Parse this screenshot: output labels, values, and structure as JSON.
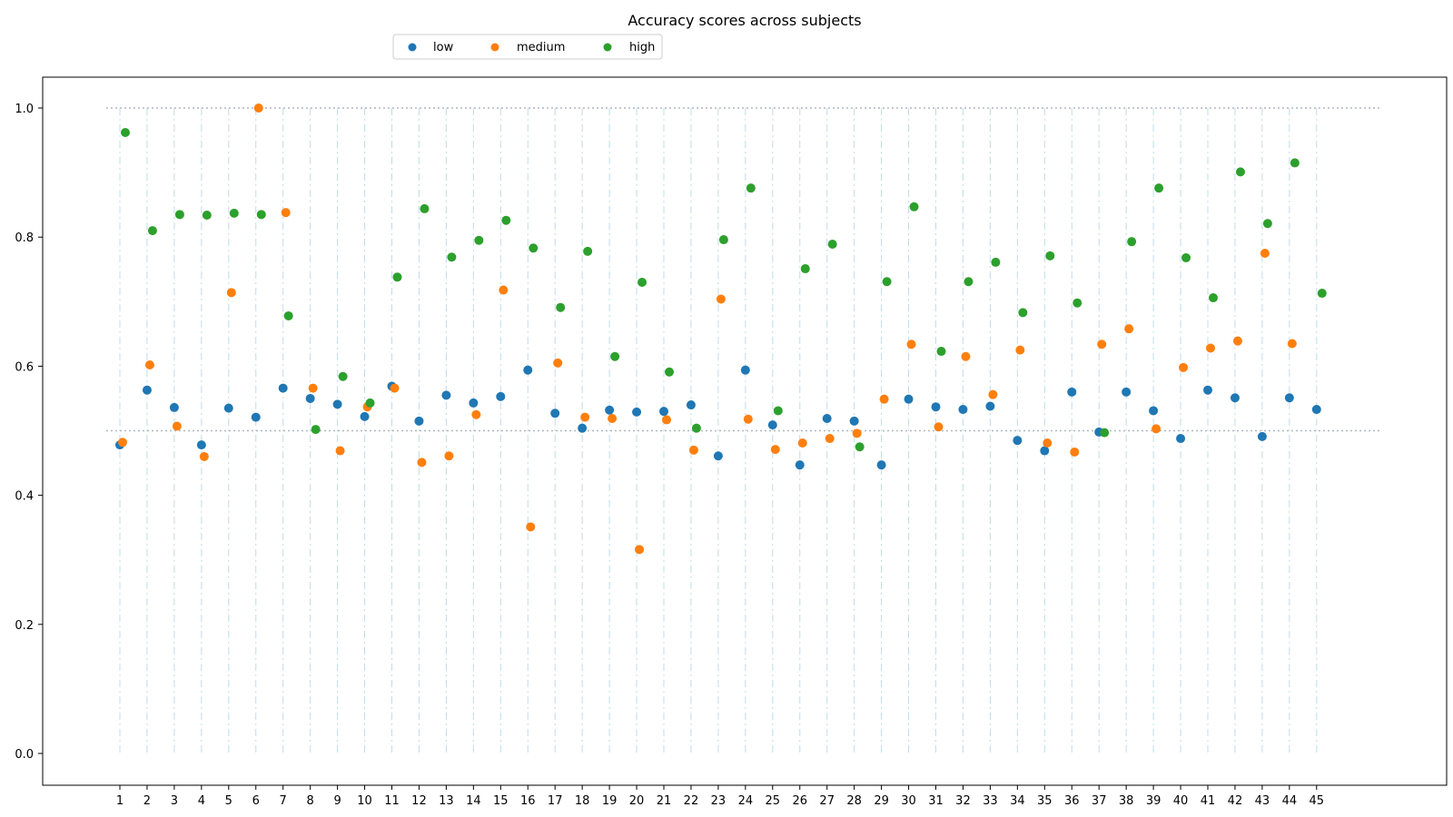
{
  "chart_data": {
    "type": "scatter",
    "title": "Accuracy scores across subjects",
    "xlabel": "",
    "ylabel": "",
    "ylim": [
      -0.05,
      1.05
    ],
    "y_ticks": [
      0.0,
      0.2,
      0.4,
      0.6,
      0.8,
      1.0
    ],
    "y_tick_labels": [
      "0.0",
      "0.2",
      "0.4",
      "0.6",
      "0.8",
      "1.0"
    ],
    "reference_lines": [
      0.5,
      1.0
    ],
    "grid": "vertical dash-dot per subject",
    "legend_position": "top-left",
    "categories": [
      "1",
      "2",
      "3",
      "4",
      "5",
      "6",
      "7",
      "8",
      "9",
      "10",
      "11",
      "12",
      "13",
      "14",
      "15",
      "16",
      "17",
      "18",
      "19",
      "20",
      "21",
      "22",
      "23",
      "24",
      "25",
      "26",
      "27",
      "28",
      "29",
      "30",
      "31",
      "32",
      "33",
      "34",
      "35",
      "36",
      "37",
      "38",
      "39",
      "40",
      "41",
      "42",
      "43",
      "44",
      "45"
    ],
    "series": [
      {
        "name": "low",
        "color": "#1f77b4",
        "values": [
          0.478,
          0.563,
          0.536,
          0.478,
          0.535,
          0.521,
          0.566,
          0.55,
          0.541,
          0.522,
          0.569,
          0.515,
          0.555,
          0.543,
          0.553,
          0.594,
          0.527,
          0.504,
          0.532,
          0.529,
          0.53,
          0.54,
          0.461,
          0.594,
          0.509,
          0.447,
          0.519,
          0.515,
          0.447,
          0.549,
          0.537,
          0.533,
          0.538,
          0.485,
          0.469,
          0.56,
          0.498,
          0.56,
          0.531,
          0.488,
          0.563,
          0.551,
          0.491,
          0.551,
          0.533
        ]
      },
      {
        "name": "medium",
        "color": "#ff7f0e",
        "values": [
          0.482,
          0.602,
          0.507,
          0.46,
          0.714,
          1.0,
          0.838,
          0.566,
          0.469,
          0.537,
          0.566,
          0.451,
          0.461,
          0.525,
          0.718,
          0.351,
          0.605,
          0.521,
          0.519,
          0.316,
          0.517,
          0.47,
          0.704,
          0.518,
          0.471,
          0.481,
          0.488,
          0.496,
          0.549,
          0.634,
          0.506,
          0.615,
          0.556,
          0.625,
          0.481,
          0.467,
          0.634,
          0.658,
          0.503,
          0.598,
          0.628,
          0.639,
          0.775,
          0.635,
          null
        ]
      },
      {
        "name": "high",
        "color": "#2ca02c",
        "values": [
          0.962,
          0.81,
          0.835,
          0.834,
          0.837,
          0.835,
          0.678,
          0.502,
          0.584,
          0.543,
          0.738,
          0.844,
          0.769,
          0.795,
          0.826,
          0.783,
          0.691,
          0.778,
          0.615,
          0.73,
          0.591,
          0.504,
          0.796,
          0.876,
          0.531,
          0.751,
          0.789,
          0.475,
          0.731,
          0.847,
          0.623,
          0.731,
          0.761,
          0.683,
          0.771,
          0.698,
          0.497,
          0.793,
          0.876,
          0.768,
          0.706,
          0.901,
          0.821,
          0.915,
          0.713
        ]
      }
    ]
  }
}
